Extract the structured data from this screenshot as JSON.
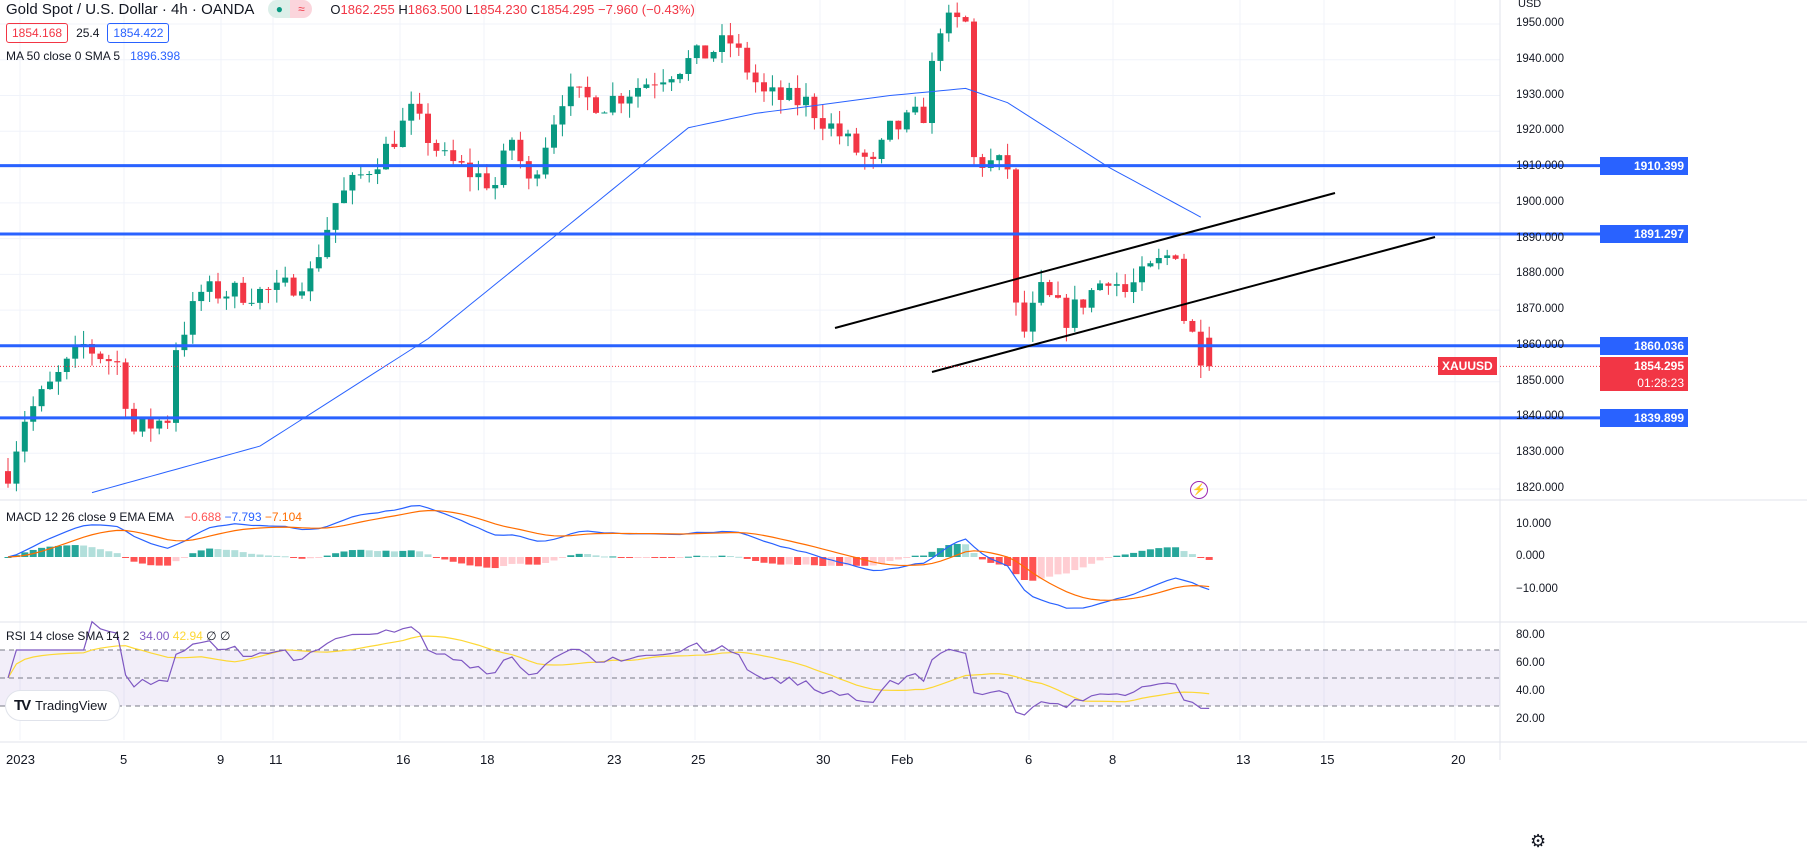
{
  "header": {
    "title": "Gold Spot / U.S. Dollar · 4h · OANDA",
    "open_label": "O",
    "open": "1862.255",
    "high_label": "H",
    "high": "1863.500",
    "low_label": "L",
    "low": "1854.230",
    "close_label": "C",
    "close": "1854.295",
    "change": "−7.960 (−0.43%)",
    "bid": "1854.168",
    "spread": "25.4",
    "ask": "1854.422",
    "currency": "USD",
    "market_status_icon": "dot-icon",
    "indicator_icon": "approx-icon"
  },
  "ma": {
    "label": "MA 50 close 0 SMA 5",
    "value": "1896.398"
  },
  "macd": {
    "label": "MACD 12 26 close 9 EMA EMA",
    "hist": "−0.688",
    "macd": "−7.793",
    "signal": "−7.104",
    "ticks": [
      "10.000",
      "0.000",
      "−10.000"
    ]
  },
  "rsi": {
    "label": "RSI 14 close SMA 14 2",
    "rsi": "34.00",
    "sma": "42.94",
    "na1": "∅",
    "na2": "∅",
    "ticks": [
      "80.00",
      "60.00",
      "40.00",
      "20.00"
    ]
  },
  "price_axis": {
    "ticks": [
      "1950.000",
      "1940.000",
      "1930.000",
      "1920.000",
      "1910.000",
      "1900.000",
      "1890.000",
      "1880.000",
      "1870.000",
      "1860.000",
      "1850.000",
      "1840.000",
      "1830.000",
      "1820.000"
    ]
  },
  "levels": [
    {
      "value": "1910.399"
    },
    {
      "value": "1891.297"
    },
    {
      "value": "1860.036"
    },
    {
      "value": "1839.899"
    }
  ],
  "symbol": {
    "name": "XAUUSD",
    "price": "1854.295",
    "countdown": "01:28:23"
  },
  "time_axis": [
    "2023",
    "5",
    "9",
    "11",
    "16",
    "18",
    "23",
    "25",
    "30",
    "Feb",
    "6",
    "8",
    "13",
    "15",
    "20"
  ],
  "brand": "TradingView",
  "colors": {
    "up": "#089981",
    "down": "#f23645",
    "level": "#2962ff",
    "ma": "#2962ff",
    "macd": "#2962ff",
    "signal": "#ff6d00",
    "rsi": "#7e57c2",
    "rsi_sma": "#fdd835"
  },
  "chart_data": {
    "type": "candlestick",
    "ylim": [
      1815,
      1955
    ],
    "price_path": [
      [
        0,
        1825
      ],
      [
        2,
        1840
      ],
      [
        9,
        1860
      ],
      [
        13,
        1855
      ],
      [
        15,
        1836
      ],
      [
        19,
        1840
      ],
      [
        20,
        1860
      ],
      [
        23,
        1875
      ],
      [
        32,
        1875
      ],
      [
        36,
        1880
      ],
      [
        39,
        1900
      ],
      [
        45,
        1915
      ],
      [
        48,
        1925
      ],
      [
        52,
        1912
      ],
      [
        58,
        1905
      ],
      [
        60,
        1918
      ],
      [
        62,
        1905
      ],
      [
        66,
        1930
      ],
      [
        71,
        1928
      ],
      [
        77,
        1935
      ],
      [
        86,
        1945
      ],
      [
        90,
        1930
      ],
      [
        95,
        1928
      ],
      [
        103,
        1910
      ],
      [
        105,
        1920
      ],
      [
        109,
        1925
      ],
      [
        111,
        1950
      ],
      [
        114,
        1950
      ],
      [
        115,
        1912
      ],
      [
        119,
        1910
      ],
      [
        120,
        1870
      ],
      [
        121,
        1864
      ],
      [
        123,
        1875
      ],
      [
        126,
        1868
      ],
      [
        131,
        1880
      ],
      [
        133,
        1875
      ],
      [
        139,
        1887
      ],
      [
        140,
        1868
      ],
      [
        142,
        1858
      ],
      [
        143,
        1854
      ]
    ],
    "ma_path": [
      [
        10,
        1819
      ],
      [
        30,
        1832
      ],
      [
        50,
        1862
      ],
      [
        70,
        1900
      ],
      [
        81,
        1921
      ],
      [
        89,
        1925
      ],
      [
        105,
        1930
      ],
      [
        114,
        1932
      ],
      [
        119,
        1928
      ],
      [
        131,
        1910
      ],
      [
        142,
        1896
      ]
    ]
  }
}
